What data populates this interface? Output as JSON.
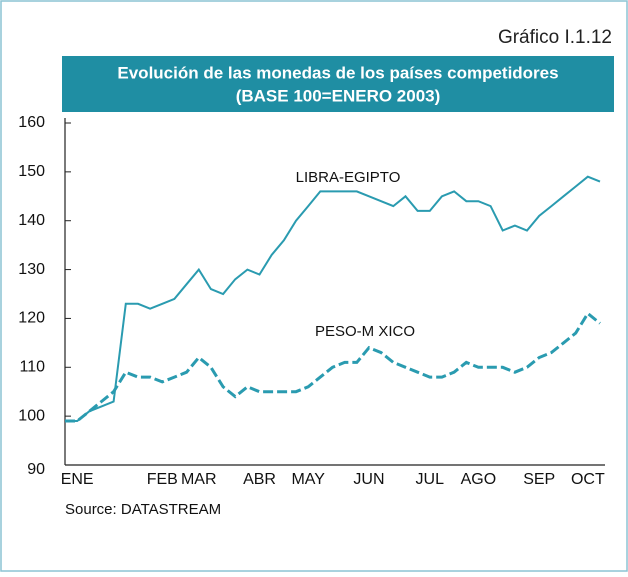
{
  "chart_data": {
    "type": "line",
    "figure_label": "Gráfico I.1.12",
    "title": "Evolución de las monedas de los países competidores",
    "subtitle": "(BASE 100=ENERO 2003)",
    "source": "Source: DATASTREAM",
    "annotations": [
      "LIBRA-EGIPTO",
      "PESO-M  XICO"
    ],
    "categories": [
      null,
      "ENE",
      null,
      null,
      null,
      null,
      null,
      null,
      "FEB",
      null,
      null,
      "MAR",
      null,
      null,
      null,
      null,
      "ABR",
      null,
      null,
      null,
      "MAY",
      null,
      null,
      null,
      null,
      "JUN",
      null,
      null,
      null,
      null,
      "JUL",
      null,
      null,
      null,
      "AGO",
      null,
      null,
      null,
      null,
      "SEP",
      null,
      null,
      null,
      "OCT",
      null
    ],
    "series": [
      {
        "name": "LIBRA-EGIPTO",
        "color": "#2a9bb0",
        "dashed": false,
        "values": [
          99,
          99,
          101,
          102,
          103,
          123,
          123,
          122,
          123,
          124,
          127,
          130,
          126,
          125,
          128,
          130,
          129,
          133,
          136,
          140,
          143,
          146,
          146,
          146,
          146,
          145,
          144,
          143,
          145,
          142,
          142,
          145,
          146,
          144,
          144,
          143,
          138,
          139,
          138,
          141,
          143,
          145,
          147,
          149,
          148
        ]
      },
      {
        "name": "PESO-M  XICO",
        "color": "#2a9bb0",
        "dashed": true,
        "values": [
          99,
          99,
          101,
          103,
          105,
          109,
          108,
          108,
          107,
          108,
          109,
          112,
          110,
          106,
          104,
          106,
          105,
          105,
          105,
          105,
          106,
          108,
          110,
          111,
          111,
          114,
          113,
          111,
          110,
          109,
          108,
          108,
          109,
          111,
          110,
          110,
          110,
          109,
          110,
          112,
          113,
          115,
          117,
          121,
          119
        ]
      }
    ],
    "ylim": [
      90,
      160
    ],
    "yticks": [
      90,
      100,
      110,
      120,
      130,
      140,
      150,
      160
    ]
  }
}
